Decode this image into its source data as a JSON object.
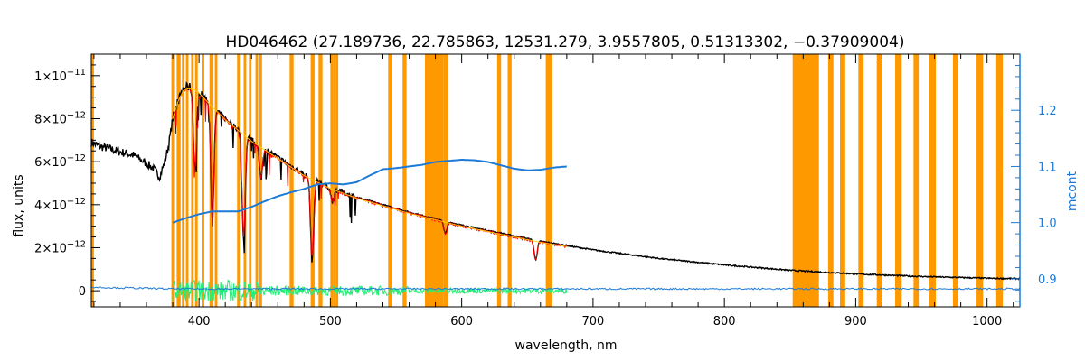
{
  "chart_data": {
    "type": "line",
    "title": "HD046462    (27.189736, 22.785863, 12531.279, 3.9557805, 0.51313302, −0.37909004)",
    "xlabel": "wavelength, nm",
    "ylabel": "flux, units",
    "ylabel_right": "mcont",
    "xlim": [
      318,
      1025
    ],
    "ylim": [
      -7.5e-13,
      1.1e-11
    ],
    "ylim_right": [
      0.85,
      1.3
    ],
    "x_ticks": [
      400,
      500,
      600,
      700,
      800,
      900,
      1000
    ],
    "x_tick_labels": [
      "400",
      "500",
      "600",
      "700",
      "800",
      "900",
      "1000"
    ],
    "y_ticks": [
      0,
      2e-12,
      4e-12,
      6e-12,
      8e-12,
      1e-11
    ],
    "y_tick_labels": [
      {
        "mant": "0",
        "exp": ""
      },
      {
        "mant": "2×10",
        "exp": "−12"
      },
      {
        "mant": "4×10",
        "exp": "−12"
      },
      {
        "mant": "6×10",
        "exp": "−12"
      },
      {
        "mant": "8×10",
        "exp": "−12"
      },
      {
        "mant": "1×10",
        "exp": "−11"
      }
    ],
    "y_right_ticks": [
      0.9,
      1.0,
      1.1,
      1.2
    ],
    "y_right_tick_labels": [
      "0.9",
      "1.0",
      "1.1",
      "1.2"
    ],
    "colors": {
      "observed": "#000000",
      "model": "#ff0000",
      "fit_highlight": "#ffd400",
      "mcont": "#1c7ad6",
      "residual": "#22ee77",
      "masked": "#ff9900",
      "right_axis": "#1c7ad6"
    },
    "masked_regions": [
      [
        318,
        320
      ],
      [
        379,
        381
      ],
      [
        383,
        386
      ],
      [
        387,
        389
      ],
      [
        390,
        392
      ],
      [
        394,
        396
      ],
      [
        397,
        399
      ],
      [
        402,
        404
      ],
      [
        408,
        411
      ],
      [
        412,
        414
      ],
      [
        429,
        431
      ],
      [
        434,
        436
      ],
      [
        438,
        440
      ],
      [
        443,
        445
      ],
      [
        446,
        448
      ],
      [
        469,
        472
      ],
      [
        485,
        488
      ],
      [
        491,
        494
      ],
      [
        500,
        502
      ],
      [
        502,
        504
      ],
      [
        504,
        506
      ],
      [
        544,
        547
      ],
      [
        555,
        558
      ],
      [
        572,
        586
      ],
      [
        586,
        590
      ],
      [
        627,
        630
      ],
      [
        635,
        638
      ],
      [
        664,
        669
      ],
      [
        852,
        872
      ],
      [
        879,
        883
      ],
      [
        888,
        892
      ],
      [
        902,
        906
      ],
      [
        916,
        920
      ],
      [
        930,
        935
      ],
      [
        944,
        948
      ],
      [
        956,
        961
      ],
      [
        974,
        978
      ],
      [
        992,
        997
      ],
      [
        1007,
        1012
      ]
    ],
    "series": [
      {
        "key": "observed",
        "x": [
          318,
          325,
          332,
          340,
          350,
          358,
          365,
          370,
          374,
          377,
          380,
          384,
          388,
          392,
          396,
          400,
          410,
          420,
          430,
          440,
          450,
          460,
          470,
          480,
          490,
          500,
          520,
          540,
          560,
          580,
          600,
          620,
          640,
          660,
          680,
          700,
          750,
          800,
          850,
          900,
          950,
          1000,
          1025
        ],
        "y": [
          6.9e-12,
          6.7e-12,
          6.6e-12,
          6.45e-12,
          6.3e-12,
          6e-12,
          5.7e-12,
          5.3e-12,
          6e-12,
          6.8e-12,
          8e-12,
          8.8e-12,
          9.4e-12,
          9.5e-12,
          9.45e-12,
          9.3e-12,
          8.6e-12,
          8e-12,
          7.5e-12,
          7e-12,
          6.6e-12,
          6.2e-12,
          5.8e-12,
          5.4e-12,
          5.1e-12,
          4.8e-12,
          4.35e-12,
          4e-12,
          3.65e-12,
          3.35e-12,
          3.05e-12,
          2.8e-12,
          2.55e-12,
          2.3e-12,
          2.1e-12,
          1.9e-12,
          1.5e-12,
          1.2e-12,
          9.5e-13,
          7.8e-13,
          6.6e-13,
          5.8e-13,
          5.6e-13
        ]
      },
      {
        "key": "model",
        "x": [
          380,
          384,
          388,
          392,
          396,
          400,
          410,
          420,
          430,
          440,
          450,
          460,
          470,
          480,
          490,
          500,
          520,
          540,
          560,
          580,
          600,
          620,
          640,
          660,
          680
        ],
        "y": [
          8e-12,
          8.8e-12,
          9.3e-12,
          9.4e-12,
          9.35e-12,
          9.2e-12,
          8.55e-12,
          7.95e-12,
          7.45e-12,
          6.95e-12,
          6.55e-12,
          6.15e-12,
          5.75e-12,
          5.35e-12,
          5.05e-12,
          4.75e-12,
          4.3e-12,
          3.95e-12,
          3.6e-12,
          3.3e-12,
          3e-12,
          2.75e-12,
          2.5e-12,
          2.25e-12,
          2.05e-12
        ]
      },
      {
        "key": "mcont",
        "axis": "right",
        "x": [
          380,
          390,
          400,
          410,
          420,
          430,
          440,
          450,
          460,
          470,
          480,
          490,
          500,
          510,
          520,
          530,
          540,
          550,
          560,
          570,
          580,
          590,
          600,
          610,
          620,
          630,
          640,
          650,
          660,
          670,
          680
        ],
        "y": [
          1.0,
          1.008,
          1.015,
          1.02,
          1.02,
          1.02,
          1.028,
          1.038,
          1.047,
          1.054,
          1.06,
          1.068,
          1.07,
          1.068,
          1.072,
          1.084,
          1.095,
          1.097,
          1.1,
          1.103,
          1.108,
          1.11,
          1.112,
          1.111,
          1.108,
          1.102,
          1.096,
          1.093,
          1.094,
          1.098,
          1.1
        ]
      },
      {
        "key": "mcont_tail",
        "axis": "right",
        "x": [
          318,
          380,
          500,
          600,
          700,
          800,
          900,
          1000,
          1025
        ],
        "y": [
          0.885,
          0.882,
          0.882,
          0.882,
          0.882,
          0.882,
          0.882,
          0.882,
          0.882
        ]
      },
      {
        "key": "residual",
        "x": [
          380,
          680
        ],
        "y": [
          0,
          0
        ],
        "amplitude": 5e-13
      }
    ],
    "absorption_lines": [
      {
        "x": 397.0,
        "depth": 3.8e-12
      },
      {
        "x": 410.2,
        "depth": 5.2e-12
      },
      {
        "x": 434.0,
        "depth": 5e-12
      },
      {
        "x": 447.1,
        "depth": 1.5e-12
      },
      {
        "x": 486.1,
        "depth": 3.8e-12
      },
      {
        "x": 501.5,
        "depth": 6e-13
      },
      {
        "x": 587.6,
        "depth": 6e-13
      },
      {
        "x": 656.3,
        "depth": 9e-13
      }
    ],
    "grid": false,
    "legend": "none"
  }
}
